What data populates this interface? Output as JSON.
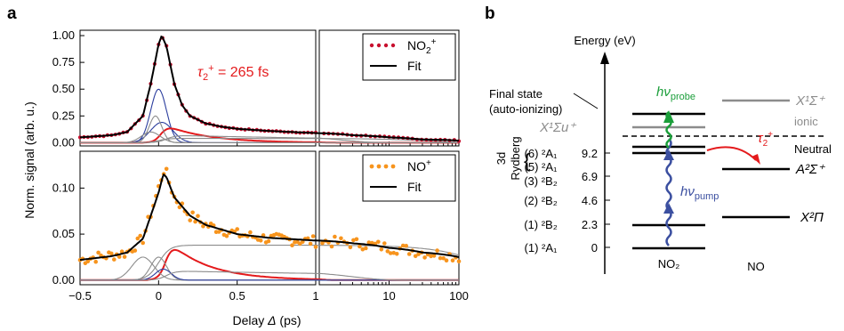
{
  "panels": {
    "a": "a",
    "b": "b"
  },
  "colors": {
    "data_top": "#c8102e",
    "data_bottom": "#f7941d",
    "fit": "#000000",
    "red": "#e41a1c",
    "blue": "#2c3e9e",
    "gray": "#8c8c8c",
    "green": "#1b9e3a",
    "probe": "#2a9d3a",
    "pump": "#3b4fa0"
  },
  "axes": {
    "ylabel": "Norm. signal (arb. u.)",
    "xlabel_prefix": "Delay ",
    "xlabel_symbol": "Δ",
    "xlabel_suffix": " (ps)",
    "x_ticks_lin": [
      "−0.5",
      "0",
      "0.5",
      "1"
    ],
    "x_ticks_log": [
      "10",
      "100"
    ],
    "top_yticks": [
      "0.00",
      "0.25",
      "0.50",
      "0.75",
      "1.00"
    ],
    "bottom_yticks": [
      "0.00",
      "0.05",
      "0.10"
    ]
  },
  "top_legend": {
    "data": "NO",
    "data_sub": "2",
    "data_sup": "+",
    "fit": "Fit"
  },
  "bottom_legend": {
    "data": "NO",
    "data_sup": "+",
    "fit": "Fit"
  },
  "tau_annotation": {
    "symbol": "τ",
    "sub": "2",
    "sup": "+",
    "value": " = 265 fs"
  },
  "chart_data": [
    {
      "type": "scatter",
      "title": "",
      "xlabel": "Delay Δ (ps)",
      "ylabel": "Norm. signal (arb. u.)",
      "x_scale": "linear from -0.5 to 1, logarithmic from 1 to 100",
      "xlim": [
        -0.5,
        100
      ],
      "ylim": [
        -0.03,
        1.05
      ],
      "series": [
        {
          "name": "NO2+",
          "kind": "points",
          "x": [
            -0.5,
            -0.4,
            -0.3,
            -0.2,
            -0.1,
            -0.05,
            0.0,
            0.02,
            0.05,
            0.1,
            0.15,
            0.2,
            0.3,
            0.4,
            0.5,
            0.7,
            1.0,
            3,
            10,
            30,
            100
          ],
          "y": [
            0.05,
            0.06,
            0.07,
            0.1,
            0.25,
            0.55,
            0.92,
            1.0,
            0.9,
            0.55,
            0.35,
            0.25,
            0.18,
            0.15,
            0.13,
            0.11,
            0.09,
            0.07,
            0.05,
            0.03,
            0.02
          ]
        },
        {
          "name": "Fit",
          "kind": "line",
          "x": [
            -0.5,
            -0.4,
            -0.3,
            -0.2,
            -0.1,
            -0.05,
            0.0,
            0.02,
            0.05,
            0.1,
            0.15,
            0.2,
            0.3,
            0.4,
            0.5,
            0.7,
            1.0,
            3,
            10,
            30,
            100
          ],
          "y": [
            0.05,
            0.06,
            0.07,
            0.1,
            0.25,
            0.55,
            0.92,
            1.0,
            0.9,
            0.55,
            0.35,
            0.25,
            0.18,
            0.15,
            0.13,
            0.11,
            0.09,
            0.07,
            0.05,
            0.03,
            0.02
          ]
        }
      ]
    },
    {
      "type": "scatter",
      "title": "",
      "xlabel": "Delay Δ (ps)",
      "ylabel": "Norm. signal (arb. u.)",
      "x_scale": "linear from -0.5 to 1, logarithmic from 1 to 100",
      "xlim": [
        -0.5,
        100
      ],
      "ylim": [
        -0.005,
        0.14
      ],
      "series": [
        {
          "name": "NO+",
          "kind": "points",
          "x": [
            -0.5,
            -0.4,
            -0.3,
            -0.2,
            -0.1,
            0.0,
            0.03,
            0.05,
            0.1,
            0.2,
            0.3,
            0.5,
            0.7,
            1.0,
            3,
            10,
            30,
            100
          ],
          "y": [
            0.022,
            0.025,
            0.027,
            0.03,
            0.045,
            0.1,
            0.12,
            0.115,
            0.09,
            0.07,
            0.06,
            0.05,
            0.045,
            0.042,
            0.04,
            0.035,
            0.03,
            0.025
          ]
        },
        {
          "name": "Fit",
          "kind": "line",
          "x": [
            -0.5,
            -0.4,
            -0.3,
            -0.2,
            -0.1,
            0.0,
            0.03,
            0.05,
            0.1,
            0.2,
            0.3,
            0.5,
            0.7,
            1.0,
            3,
            10,
            30,
            100
          ],
          "y": [
            0.022,
            0.024,
            0.026,
            0.03,
            0.045,
            0.095,
            0.115,
            0.112,
            0.09,
            0.07,
            0.06,
            0.05,
            0.046,
            0.043,
            0.04,
            0.035,
            0.03,
            0.025
          ]
        }
      ]
    }
  ],
  "diagram": {
    "energy_label": "Energy (eV)",
    "final_state_line1": "Final state",
    "final_state_line2": "(auto-ionizing)",
    "x1sigma_left": "X¹Σu⁺",
    "x1sigma_right": "X¹Σ⁺",
    "ionic": "ionic",
    "neutral": "Neutral",
    "a2sigma": "A²Σ⁺",
    "x2pi": "X²Π",
    "group_3d": "3d",
    "group_rydberg": "Rydberg",
    "states": [
      "(6) ²A₁",
      "(5) ²A₁",
      "(3) ²B₂",
      "(2) ²B₂",
      "(1) ²B₂",
      "(1) ²A₁"
    ],
    "energies": [
      "9.2",
      "6.9",
      "4.6",
      "2.3",
      "0"
    ],
    "probe_label": "hν",
    "probe_sub": "probe",
    "pump_label": "hν",
    "pump_sub": "pump",
    "tau_symbol": "τ",
    "tau_sub": "2",
    "tau_sup": "+",
    "no2": "NO₂",
    "no": "NO"
  }
}
